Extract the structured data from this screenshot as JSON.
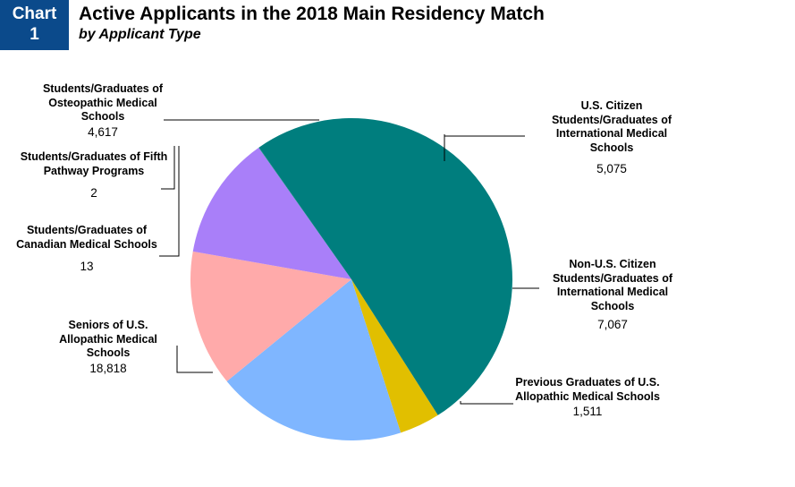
{
  "badge": {
    "line1": "Chart",
    "line2": "1"
  },
  "title": "Active Applicants in the 2018 Main Residency Match",
  "subtitle": "by Applicant Type",
  "colors": {
    "badge_bg": "#0b4a8b",
    "seniors": "#007e7e",
    "previous": "#e1bf00",
    "non_us_img": "#7fb6ff",
    "us_img": "#ffaaaa",
    "osteopathic": "#a97ff9",
    "leader": "#000000"
  },
  "chart_data": {
    "type": "pie",
    "title": "Active Applicants in the 2018 Main Residency Match",
    "subtitle": "by Applicant Type",
    "slices": [
      {
        "label": "Seniors of U.S. Allopathic Medical Schools",
        "value": 18818,
        "value_text": "18,818",
        "color": "#007e7e"
      },
      {
        "label": "Previous Graduates of U.S. Allopathic Medical Schools",
        "value": 1511,
        "value_text": "1,511",
        "color": "#e1bf00"
      },
      {
        "label": "Non-U.S. Citizen Students/Graduates of International Medical Schools",
        "value": 7067,
        "value_text": "7,067",
        "color": "#7fb6ff"
      },
      {
        "label": "U.S. Citizen Students/Graduates of International Medical Schools",
        "value": 5075,
        "value_text": "5,075",
        "color": "#ffaaaa"
      },
      {
        "label": "Students/Graduates of Osteopathic Medical Schools",
        "value": 4617,
        "value_text": "4,617",
        "color": "#a97ff9"
      },
      {
        "label": "Students/Graduates of Fifth Pathway Programs",
        "value": 2,
        "value_text": "2",
        "color": "#007e7e"
      },
      {
        "label": "Students/Graduates of Canadian Medical Schools",
        "value": 13,
        "value_text": "13",
        "color": "#007e7e"
      }
    ]
  }
}
